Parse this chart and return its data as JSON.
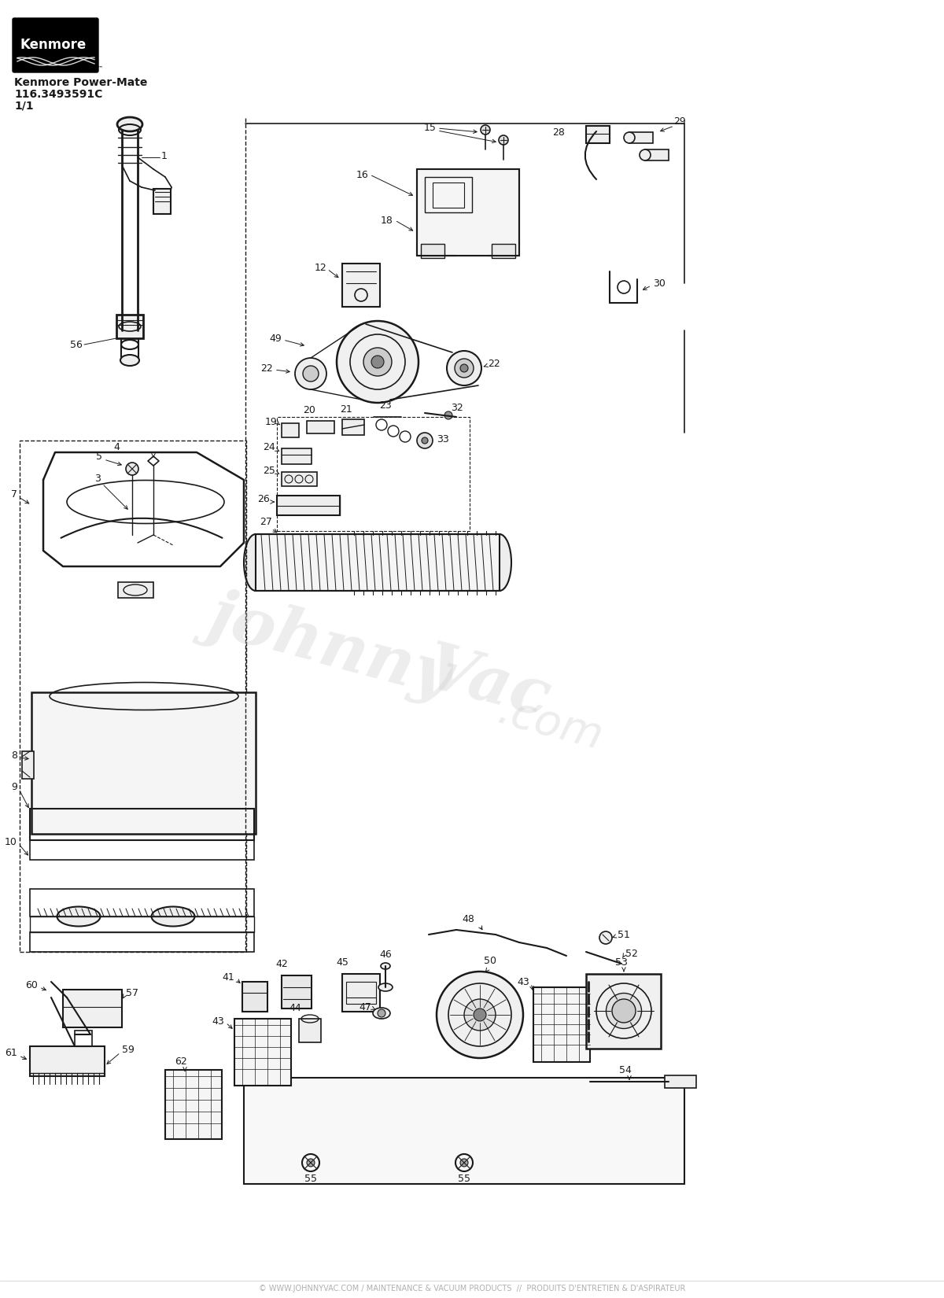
{
  "title": "Kenmore Power-Mate",
  "model": "116.3493591C",
  "page": "1/1",
  "bg": "#ffffff",
  "lc": "#1a1a1a",
  "footer_color": "#b0b0b0",
  "footer": "© WWW.JOHNNYVAC.COM / MAINTENANCE & VACUUM PRODUCTS  //  PRODUITS D'ENTRETIEN & D'ASPIRATEUR",
  "wm1": "johnny",
  "wm2": "Vac",
  "wm3": ".com"
}
